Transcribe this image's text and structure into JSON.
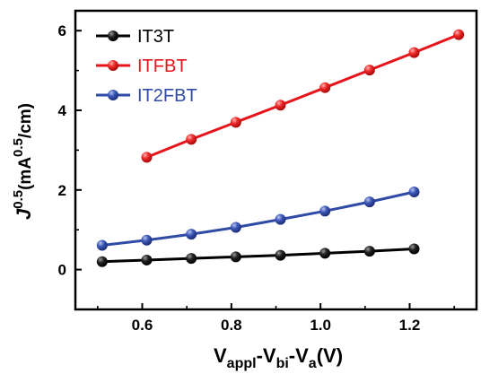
{
  "chart_data": {
    "type": "line",
    "title": "",
    "xlabel": {
      "main": "V",
      "sub1": "appl",
      "mid1": "-V",
      "sub2": "bi",
      "mid2": "-V",
      "sub3": "a",
      "tail": "(V)"
    },
    "ylabel": {
      "main": "J",
      "sup1": "0.5",
      "open": "(mA",
      "sup2": "0.5",
      "tail": "/cm)"
    },
    "xlim": [
      0.45,
      1.35
    ],
    "ylim": [
      -1.0,
      6.5
    ],
    "x_ticks": [
      "0.6",
      "0.8",
      "1.0",
      "1.2"
    ],
    "y_ticks": [
      "0",
      "2",
      "4",
      "6"
    ],
    "legend_position": "top-left",
    "series": [
      {
        "name": "IT3T",
        "color": "#000000",
        "x": [
          0.51,
          0.61,
          0.71,
          0.81,
          0.91,
          1.01,
          1.11,
          1.21
        ],
        "y": [
          0.2,
          0.24,
          0.28,
          0.32,
          0.36,
          0.41,
          0.46,
          0.52
        ]
      },
      {
        "name": "ITFBT",
        "color": "#e8141c",
        "x": [
          0.61,
          0.71,
          0.81,
          0.91,
          1.01,
          1.11,
          1.21,
          1.31
        ],
        "y": [
          2.82,
          3.27,
          3.7,
          4.13,
          4.57,
          5.01,
          5.45,
          5.9
        ]
      },
      {
        "name": "IT2FBT",
        "color": "#2f4ba6",
        "x": [
          0.51,
          0.61,
          0.71,
          0.81,
          0.91,
          1.01,
          1.11,
          1.21
        ],
        "y": [
          0.61,
          0.74,
          0.89,
          1.06,
          1.26,
          1.47,
          1.7,
          1.95
        ]
      }
    ]
  }
}
